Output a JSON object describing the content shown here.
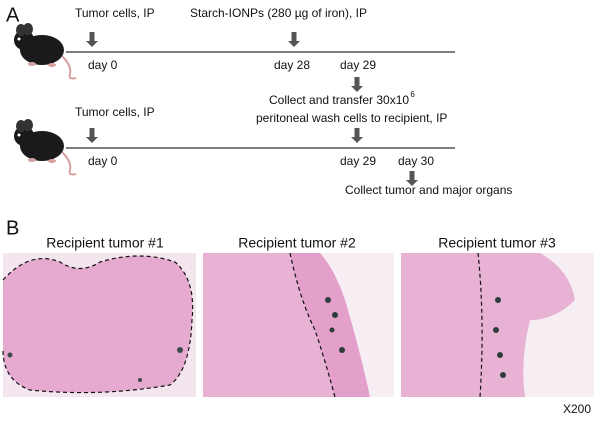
{
  "panel_a": {
    "label": "A",
    "timeline_1": {
      "events": [
        "Tumor cells, IP",
        "Starch-IONPs (280 µg of iron), IP"
      ],
      "days": [
        "day 0",
        "day 28",
        "day 29"
      ],
      "note": {
        "line_1": "Collect and transfer 30x10",
        "line_1_superscript": "6",
        "line_2": "peritoneal wash cells to recipient, IP"
      }
    },
    "timeline_2": {
      "events": [
        "Tumor cells, IP"
      ],
      "days": [
        "day 0",
        "day 29",
        "day 30"
      ],
      "note": "Collect tumor and major organs"
    }
  },
  "panel_b": {
    "label": "B",
    "images": [
      {
        "title": "Recipient tumor #1"
      },
      {
        "title": "Recipient tumor #2"
      },
      {
        "title": "Recipient tumor #3"
      }
    ],
    "magnification": "X200"
  }
}
